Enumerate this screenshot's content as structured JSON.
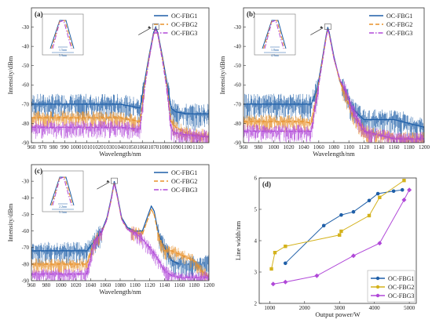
{
  "colors": {
    "fbg1": "#1f5fa8",
    "fbg2": "#e8912a",
    "fbg3": "#b048d8",
    "fbg2_dot": "#d4b21c"
  },
  "spectra": [
    {
      "label": "(a)",
      "type": "line",
      "xlabel": "Wavelength/nm",
      "ylabel": "Intensity/dBm",
      "xlim": [
        960,
        1120
      ],
      "ylim": [
        -90,
        -20
      ],
      "xticks": [
        960,
        970,
        980,
        990,
        1000,
        1010,
        1020,
        1030,
        1040,
        1050,
        1060,
        1070,
        1080,
        1090,
        1100,
        1110
      ],
      "yticks": [
        -90,
        -80,
        -70,
        -60,
        -50,
        -40,
        -30
      ],
      "series": [
        {
          "name": "OC-FBG1",
          "x": [
            960,
            1040,
            1058,
            1062,
            1066,
            1070,
            1072,
            1074,
            1078,
            1082,
            1086,
            1090,
            1100,
            1120
          ],
          "y": [
            -70,
            -70,
            -72,
            -58,
            -45,
            -33,
            -30,
            -33,
            -45,
            -58,
            -72,
            -74,
            -75,
            -75
          ]
        },
        {
          "name": "OC-FBG2",
          "x": [
            960,
            1040,
            1058,
            1062,
            1066,
            1070,
            1072,
            1074,
            1078,
            1082,
            1086,
            1090,
            1100,
            1120
          ],
          "y": [
            -77,
            -77,
            -79,
            -60,
            -46,
            -34,
            -31,
            -34,
            -46,
            -60,
            -79,
            -82,
            -85,
            -87
          ]
        },
        {
          "name": "OC-FBG3",
          "x": [
            960,
            1040,
            1058,
            1062,
            1066,
            1070,
            1072,
            1074,
            1078,
            1082,
            1086,
            1090,
            1100,
            1120
          ],
          "y": [
            -82,
            -82,
            -83,
            -62,
            -47,
            -34,
            -31,
            -34,
            -47,
            -62,
            -83,
            -85,
            -86,
            -87
          ]
        }
      ],
      "inset_labels": [
        "1.5nm",
        "5.9nm"
      ]
    },
    {
      "label": "(b)",
      "type": "line",
      "xlabel": "Wavelength/nm",
      "ylabel": "Intensity/dBm",
      "xlim": [
        960,
        1200
      ],
      "ylim": [
        -90,
        -20
      ],
      "xticks": [
        960,
        980,
        1000,
        1020,
        1040,
        1060,
        1080,
        1100,
        1120,
        1140,
        1160,
        1180,
        1200
      ],
      "yticks": [
        -90,
        -80,
        -70,
        -60,
        -50,
        -40,
        -30
      ],
      "series": [
        {
          "name": "OC-FBG1",
          "x": [
            960,
            1040,
            1050,
            1058,
            1064,
            1070,
            1072,
            1074,
            1080,
            1088,
            1096,
            1104,
            1120,
            1160,
            1200
          ],
          "y": [
            -70,
            -70,
            -70,
            -62,
            -48,
            -34,
            -30,
            -33,
            -45,
            -58,
            -64,
            -72,
            -78,
            -78,
            -82
          ]
        },
        {
          "name": "OC-FBG2",
          "x": [
            960,
            1040,
            1050,
            1058,
            1064,
            1070,
            1072,
            1074,
            1080,
            1088,
            1096,
            1104,
            1120,
            1160,
            1200
          ],
          "y": [
            -79,
            -79,
            -80,
            -64,
            -49,
            -35,
            -31,
            -34,
            -46,
            -58,
            -66,
            -75,
            -84,
            -88,
            -88
          ]
        },
        {
          "name": "OC-FBG3",
          "x": [
            960,
            1040,
            1050,
            1058,
            1064,
            1070,
            1072,
            1074,
            1080,
            1088,
            1096,
            1104,
            1120,
            1160,
            1200
          ],
          "y": [
            -84,
            -84,
            -84,
            -65,
            -50,
            -35,
            -31,
            -34,
            -46,
            -57,
            -63,
            -72,
            -84,
            -88,
            -88
          ]
        }
      ],
      "inset_labels": [
        "1.8nm",
        "4.9nm"
      ]
    },
    {
      "label": "(c)",
      "type": "line",
      "xlabel": "Wavelength/nm",
      "ylabel": "Intensity/dBm",
      "xlim": [
        960,
        1200
      ],
      "ylim": [
        -90,
        -20
      ],
      "xticks": [
        960,
        980,
        1000,
        1020,
        1040,
        1060,
        1080,
        1100,
        1120,
        1140,
        1160,
        1180,
        1200
      ],
      "yticks": [
        -90,
        -80,
        -70,
        -60,
        -50,
        -40,
        -30
      ],
      "series": [
        {
          "name": "OC-FBG1",
          "x": [
            960,
            1035,
            1045,
            1055,
            1062,
            1068,
            1072,
            1076,
            1082,
            1090,
            1100,
            1110,
            1118,
            1122,
            1126,
            1132,
            1140,
            1150,
            1160
          ],
          "y": [
            -72,
            -72,
            -66,
            -60,
            -52,
            -40,
            -30,
            -38,
            -52,
            -58,
            -60,
            -60,
            -50,
            -45,
            -48,
            -62,
            -70,
            -78,
            -80
          ]
        },
        {
          "name": "OC-FBG2",
          "x": [
            960,
            1035,
            1045,
            1055,
            1062,
            1068,
            1072,
            1076,
            1082,
            1090,
            1100,
            1110,
            1118,
            1122,
            1126,
            1132,
            1140,
            1150,
            1160,
            1170,
            1180,
            1190,
            1200
          ],
          "y": [
            -80,
            -80,
            -67,
            -61,
            -53,
            -41,
            -31,
            -39,
            -53,
            -59,
            -61,
            -62,
            -52,
            -47,
            -50,
            -64,
            -72,
            -72,
            -74,
            -76,
            -78,
            -84,
            -88
          ]
        },
        {
          "name": "OC-FBG3",
          "x": [
            960,
            1035,
            1045,
            1055,
            1062,
            1068,
            1072,
            1076,
            1082,
            1090,
            1100,
            1110,
            1120,
            1130,
            1140,
            1150,
            1160,
            1200
          ],
          "y": [
            -86,
            -86,
            -67,
            -61,
            -53,
            -41,
            -31,
            -39,
            -53,
            -59,
            -61,
            -65,
            -70,
            -76,
            -84,
            -87,
            -88,
            -88
          ]
        }
      ],
      "inset_labels": [
        "2.2nm",
        "5.1nm"
      ]
    },
    {
      "label": "(d)",
      "type": "scatter",
      "xlabel": "Output power/W",
      "ylabel": "Line width/nm",
      "xlim": [
        700,
        5200
      ],
      "ylim": [
        2,
        6
      ],
      "xticks": [
        1000,
        2000,
        3000,
        4000,
        5000
      ],
      "yticks": [
        2,
        3,
        4,
        5,
        6
      ],
      "series": [
        {
          "name": "OC-FBG1",
          "x": [
            1450,
            2550,
            3050,
            3400,
            3850,
            4100,
            4550,
            4800
          ],
          "y": [
            3.28,
            4.48,
            4.82,
            4.92,
            5.28,
            5.5,
            5.58,
            5.62
          ]
        },
        {
          "name": "OC-FBG2",
          "x": [
            1050,
            1150,
            1450,
            3000,
            3050,
            3850,
            4150,
            4850
          ],
          "y": [
            3.1,
            3.62,
            3.82,
            4.18,
            4.3,
            4.8,
            5.38,
            5.92
          ]
        },
        {
          "name": "OC-FBG3",
          "x": [
            1100,
            1450,
            2350,
            3400,
            4150,
            4850,
            5000
          ],
          "y": [
            2.62,
            2.68,
            2.88,
            3.52,
            3.92,
            5.3,
            5.62
          ]
        }
      ]
    }
  ]
}
